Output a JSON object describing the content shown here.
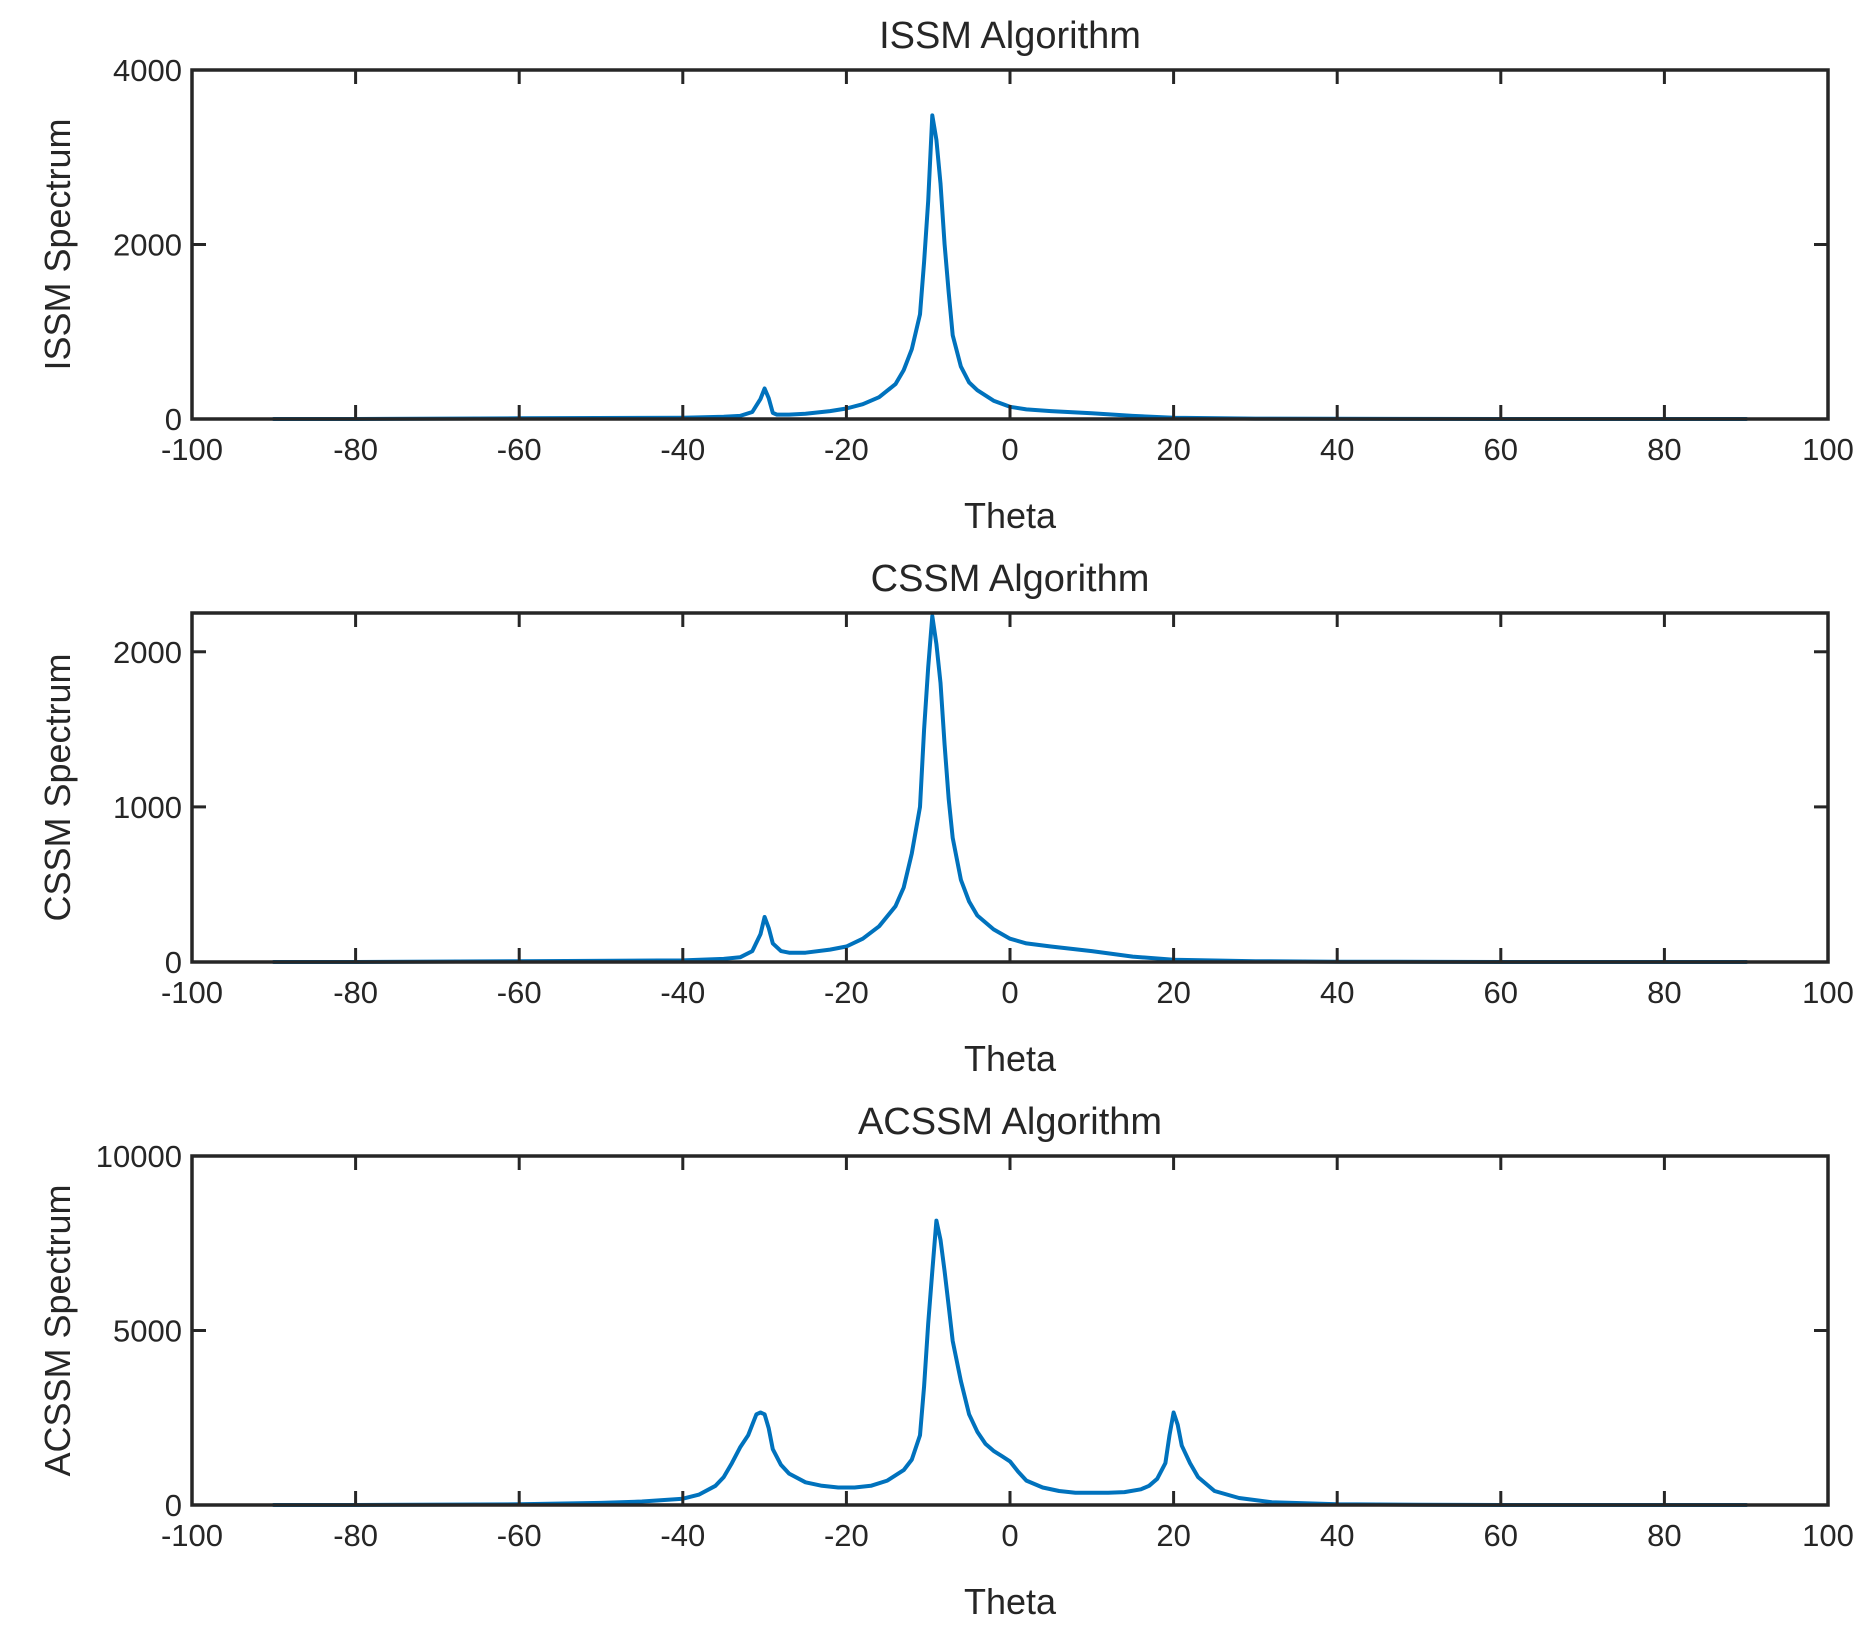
{
  "chart_data": [
    {
      "type": "line",
      "title": "ISSM Algorithm",
      "xlabel": "Theta",
      "ylabel": "ISSM Spectrum",
      "xlim": [
        -100,
        100
      ],
      "ylim": [
        0,
        4000
      ],
      "xticks": [
        "-100",
        "-80",
        "-60",
        "-40",
        "-20",
        "0",
        "20",
        "40",
        "60",
        "80",
        "100"
      ],
      "yticks": [
        "0",
        "2000",
        "4000"
      ],
      "grid": false,
      "series": [
        {
          "name": "ISSM Spectrum",
          "color": "#0072BD",
          "x": [
            -90,
            -80,
            -60,
            -40,
            -35,
            -33,
            -31.5,
            -30.5,
            -30,
            -29.5,
            -29,
            -28.5,
            -27,
            -25,
            -22,
            -20,
            -18,
            -16,
            -14,
            -13,
            -12,
            -11,
            -10.5,
            -10,
            -9.5,
            -9,
            -8.5,
            -8,
            -7.5,
            -7,
            -6,
            -5,
            -4,
            -2,
            0,
            2,
            5,
            10,
            15,
            20,
            30,
            40,
            60,
            80,
            90
          ],
          "values": [
            0,
            0,
            8,
            15,
            25,
            35,
            80,
            230,
            350,
            240,
            70,
            50,
            50,
            60,
            90,
            120,
            170,
            250,
            400,
            560,
            800,
            1200,
            1800,
            2500,
            3480,
            3200,
            2700,
            2000,
            1450,
            960,
            600,
            420,
            330,
            210,
            140,
            110,
            90,
            65,
            35,
            15,
            5,
            2,
            0,
            0,
            0
          ]
        }
      ]
    },
    {
      "type": "line",
      "title": "CSSM Algorithm",
      "xlabel": "Theta",
      "ylabel": "CSSM Spectrum",
      "xlim": [
        -100,
        100
      ],
      "ylim": [
        0,
        2250
      ],
      "xticks": [
        "-100",
        "-80",
        "-60",
        "-40",
        "-20",
        "0",
        "20",
        "40",
        "60",
        "80",
        "100"
      ],
      "yticks": [
        "0",
        "1000",
        "2000"
      ],
      "grid": false,
      "series": [
        {
          "name": "CSSM Spectrum",
          "color": "#0072BD",
          "x": [
            -90,
            -80,
            -60,
            -40,
            -35,
            -33,
            -31.5,
            -30.5,
            -30,
            -29.5,
            -29,
            -28,
            -27,
            -25,
            -22,
            -20,
            -18,
            -16,
            -14,
            -13,
            -12,
            -11,
            -10.5,
            -10,
            -9.5,
            -9,
            -8.5,
            -8,
            -7.5,
            -7,
            -6,
            -5,
            -4,
            -2,
            0,
            2,
            5,
            10,
            15,
            20,
            30,
            40,
            60,
            80,
            90
          ],
          "values": [
            0,
            0,
            5,
            10,
            20,
            30,
            70,
            180,
            290,
            220,
            120,
            70,
            60,
            60,
            80,
            100,
            150,
            230,
            360,
            480,
            700,
            1000,
            1500,
            1900,
            2230,
            2050,
            1800,
            1400,
            1050,
            800,
            530,
            390,
            300,
            210,
            150,
            120,
            100,
            70,
            35,
            15,
            5,
            2,
            0,
            0,
            0
          ]
        }
      ]
    },
    {
      "type": "line",
      "title": "ACSSM Algorithm",
      "xlabel": "Theta",
      "ylabel": "ACSSM Spectrum",
      "xlim": [
        -100,
        100
      ],
      "ylim": [
        0,
        10000
      ],
      "xticks": [
        "-100",
        "-80",
        "-60",
        "-40",
        "-20",
        "0",
        "20",
        "40",
        "60",
        "80",
        "100"
      ],
      "yticks": [
        "0",
        "5000",
        "10000"
      ],
      "grid": false,
      "series": [
        {
          "name": "ACSSM Spectrum",
          "color": "#0072BD",
          "x": [
            -90,
            -80,
            -60,
            -50,
            -45,
            -40,
            -38,
            -36,
            -35,
            -34,
            -33,
            -32,
            -31.5,
            -31,
            -30.5,
            -30,
            -29.5,
            -29,
            -28,
            -27,
            -25,
            -23,
            -21,
            -19,
            -17,
            -15,
            -13,
            -12,
            -11,
            -10.5,
            -10,
            -9.5,
            -9,
            -8.5,
            -8,
            -7.5,
            -7,
            -6,
            -5,
            -4,
            -3,
            -2,
            -1,
            0,
            1,
            2,
            4,
            6,
            8,
            10,
            12,
            14,
            16,
            17,
            18,
            19,
            19.5,
            20,
            20.5,
            21,
            22,
            23,
            25,
            28,
            32,
            40,
            50,
            60,
            80,
            90
          ],
          "values": [
            0,
            0,
            20,
            60,
            100,
            180,
            300,
            550,
            800,
            1200,
            1650,
            2000,
            2300,
            2600,
            2650,
            2600,
            2200,
            1600,
            1150,
            900,
            650,
            550,
            500,
            500,
            550,
            700,
            1000,
            1300,
            2000,
            3400,
            5200,
            6700,
            8150,
            7600,
            6700,
            5700,
            4700,
            3550,
            2600,
            2100,
            1750,
            1550,
            1400,
            1250,
            950,
            700,
            500,
            400,
            350,
            350,
            350,
            370,
            450,
            550,
            750,
            1200,
            2000,
            2650,
            2300,
            1700,
            1200,
            800,
            400,
            200,
            80,
            20,
            5,
            0,
            0,
            0
          ]
        }
      ]
    }
  ]
}
